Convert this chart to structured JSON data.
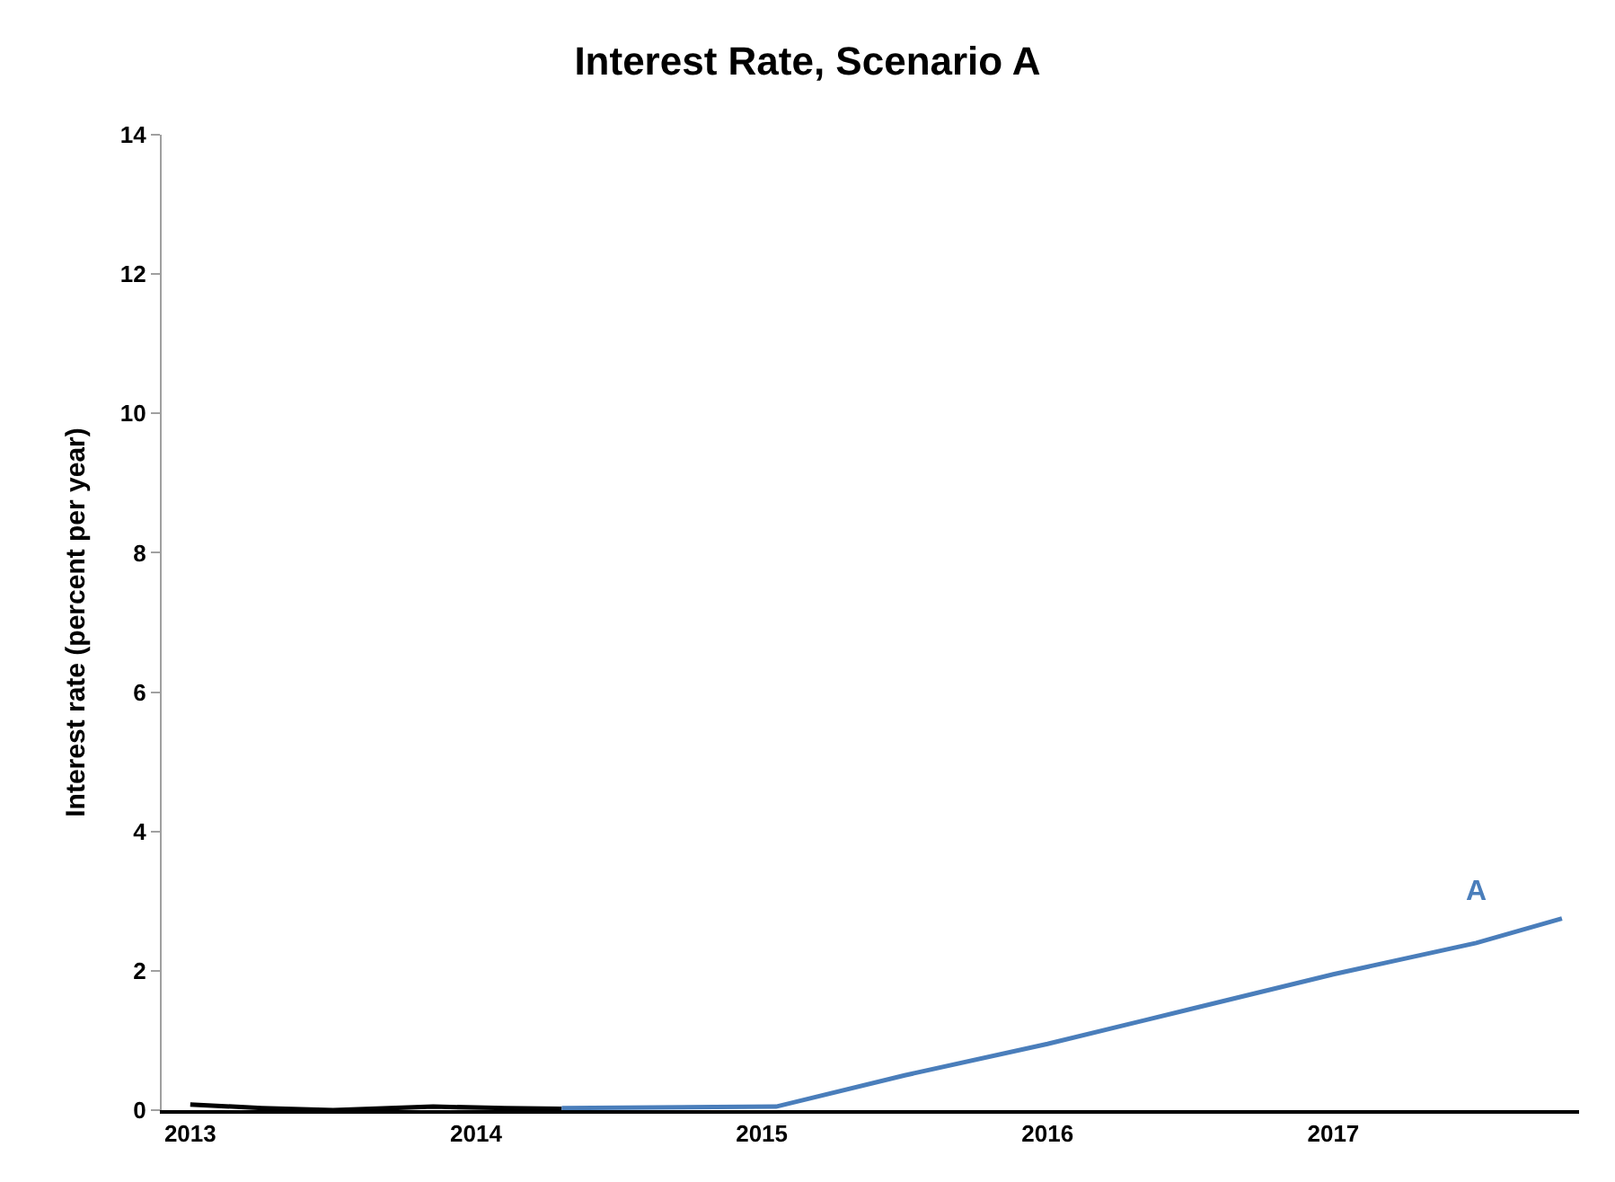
{
  "chart_data": {
    "type": "line",
    "title": "Interest Rate, Scenario A",
    "ylabel": "Interest rate (percent per year)",
    "xlim": [
      2012.9,
      2017.86
    ],
    "xticks": [
      2013,
      2014,
      2015,
      2016,
      2017
    ],
    "ylim": [
      0,
      14
    ],
    "yticks": [
      0,
      2,
      4,
      6,
      8,
      10,
      12,
      14
    ],
    "legend": false,
    "series": [
      {
        "color": "#000000",
        "x": [
          2013.0,
          2013.25,
          2013.5,
          2013.85,
          2014.1,
          2014.3
        ],
        "values": [
          0.08,
          0.03,
          0.0,
          0.05,
          0.03,
          0.02
        ]
      },
      {
        "name": "A",
        "color": "#4a7ebb",
        "x": [
          2014.3,
          2015.05,
          2015.5,
          2016.0,
          2016.5,
          2017.0,
          2017.5,
          2017.8
        ],
        "values": [
          0.03,
          0.05,
          0.5,
          0.95,
          1.45,
          1.95,
          2.4,
          2.75
        ]
      }
    ]
  }
}
